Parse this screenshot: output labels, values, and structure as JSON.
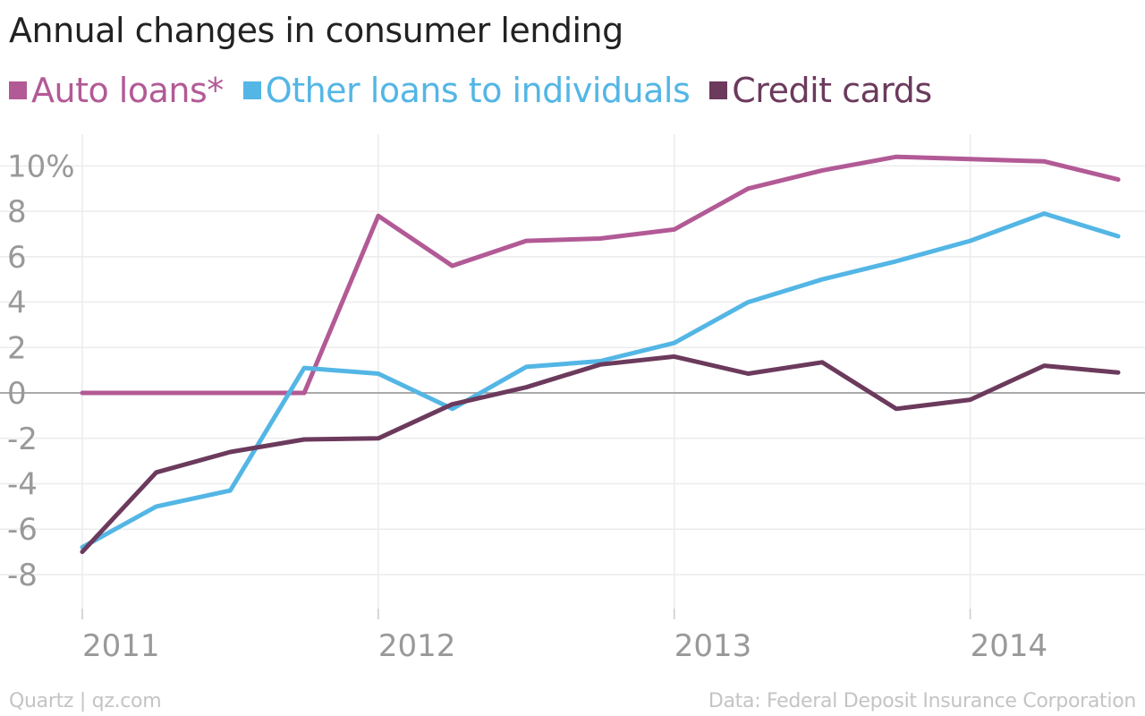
{
  "title": "Annual changes in consumer lending",
  "footer": {
    "source_left": "Quartz | qz.com",
    "source_right": "Data: Federal Deposit Insurance Corporation"
  },
  "chart_data": {
    "type": "line",
    "title": "Annual changes in consumer lending",
    "xlabel": "",
    "ylabel": "",
    "grid": true,
    "legend_position": "top-left",
    "x": [
      2011.0,
      2011.25,
      2011.5,
      2011.75,
      2012.0,
      2012.25,
      2012.5,
      2012.75,
      2013.0,
      2013.25,
      2013.5,
      2013.75,
      2014.0,
      2014.25,
      2014.5
    ],
    "xlim": [
      2011.0,
      2014.5
    ],
    "ylim": [
      -9.5,
      11
    ],
    "x_ticks": [
      2011,
      2012,
      2013,
      2014
    ],
    "x_tick_labels": [
      "2011",
      "2012",
      "2013",
      "2014"
    ],
    "y_ticks": [
      10,
      8,
      6,
      4,
      2,
      0,
      -2,
      -4,
      -6,
      -8
    ],
    "y_tick_labels": [
      "10%",
      "8",
      "6",
      "4",
      "2",
      "0",
      "-2",
      "-4",
      "-6",
      "-8"
    ],
    "series": [
      {
        "name": "Auto loans*",
        "color": "#b25a96",
        "values": [
          0,
          0,
          0,
          0,
          7.8,
          5.6,
          6.7,
          6.8,
          7.2,
          9.0,
          9.8,
          10.4,
          10.3,
          10.2,
          9.4
        ]
      },
      {
        "name": "Other loans to individuals",
        "color": "#53b6e5",
        "values": [
          -6.8,
          -5.0,
          -4.3,
          1.1,
          0.85,
          -0.7,
          1.15,
          1.4,
          2.2,
          4.0,
          5.0,
          5.8,
          6.7,
          7.9,
          6.9
        ]
      },
      {
        "name": "Credit cards",
        "color": "#6b3a5c",
        "values": [
          -7.0,
          -3.5,
          -2.6,
          -2.05,
          -2.0,
          -0.5,
          0.25,
          1.25,
          1.6,
          0.85,
          1.35,
          -0.7,
          -0.3,
          1.2,
          0.9
        ]
      }
    ]
  }
}
